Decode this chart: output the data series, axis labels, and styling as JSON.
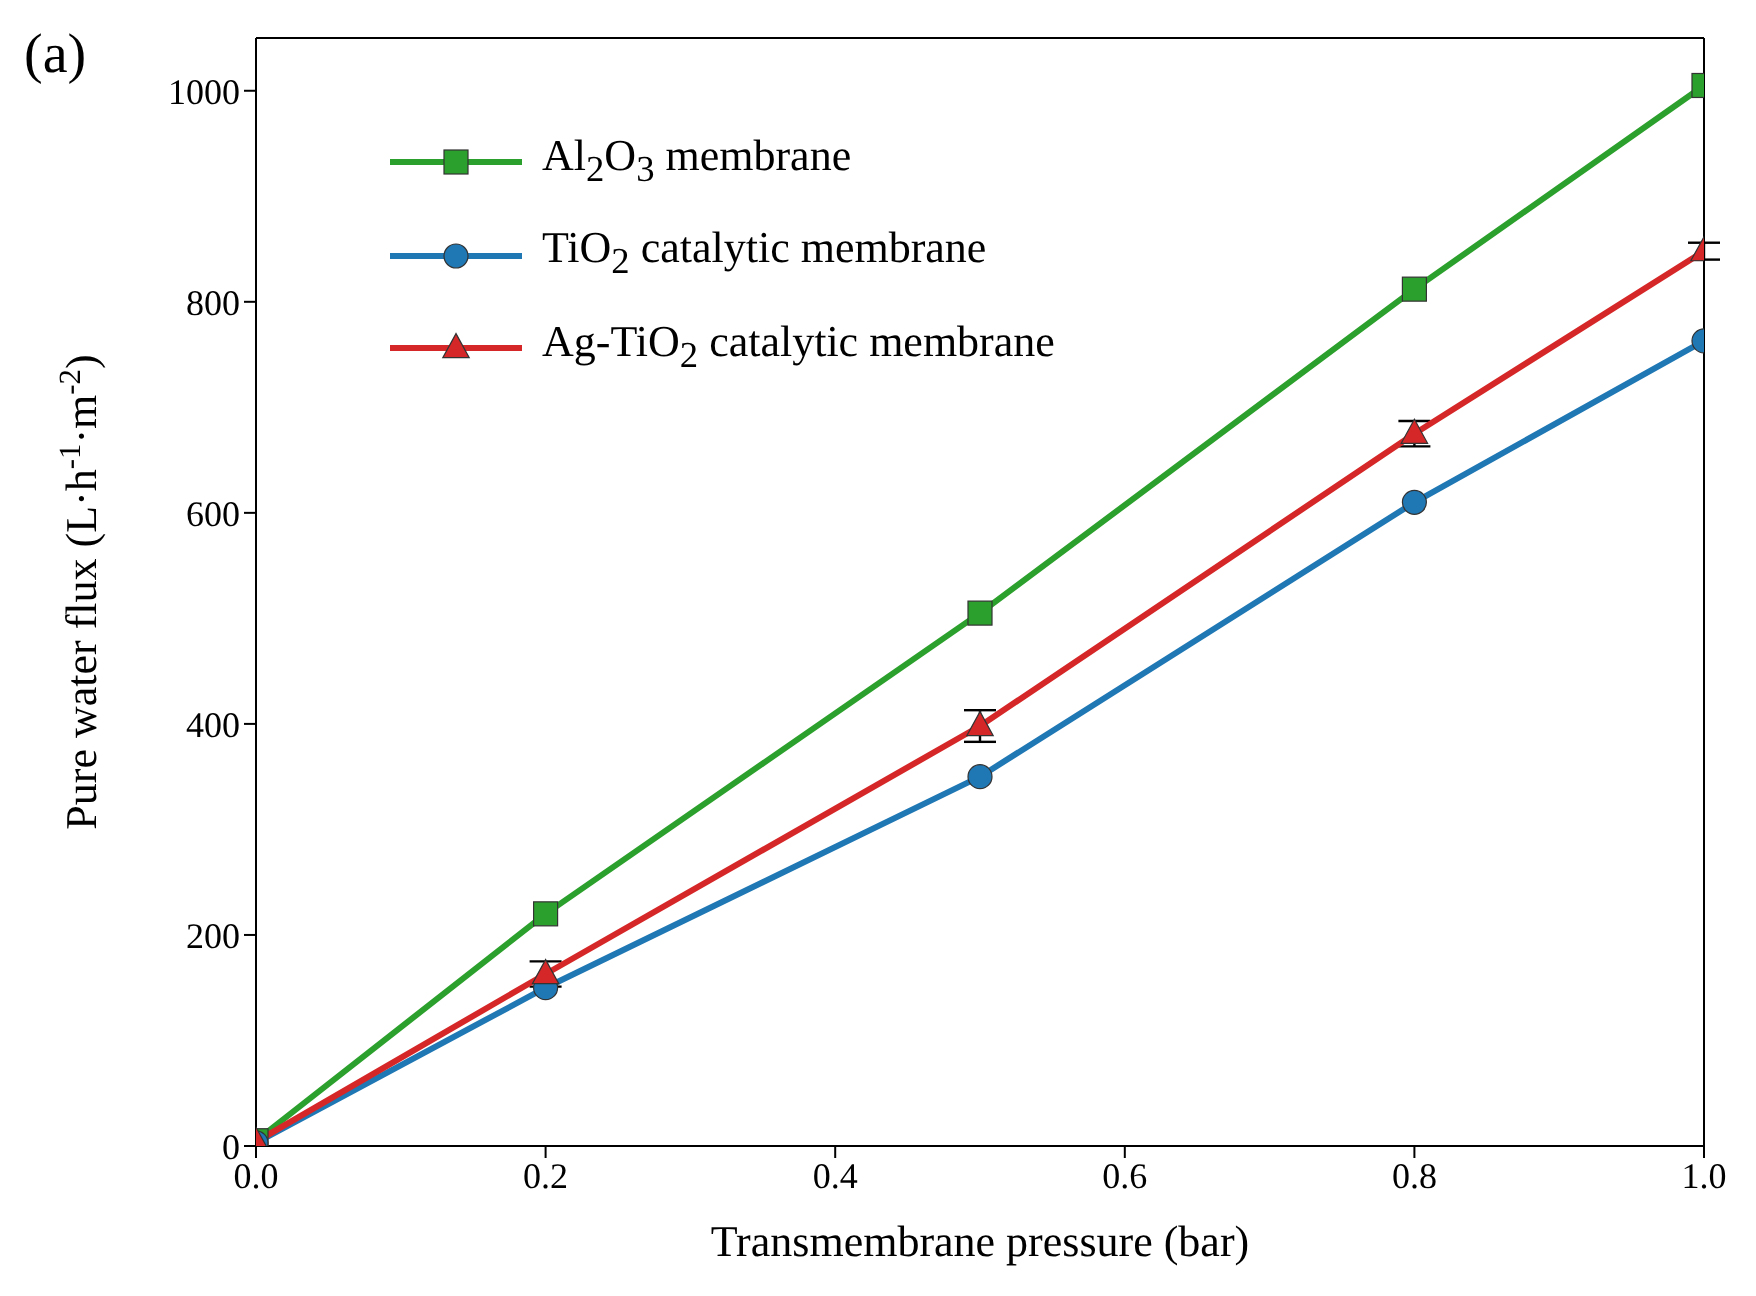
{
  "chart_data": {
    "type": "line",
    "annotations": [
      "(a)"
    ],
    "xlabel": "Transmembrane pressure (bar)",
    "ylabel": "Pure water flux (L·h$^{-1}$·m$^{-2}$)",
    "x": [
      0,
      0.2,
      0.5,
      0.8,
      1.0
    ],
    "series": [
      {
        "name": "Al$_{2}$O$_{3}$ membrane",
        "color": "#2ca02c",
        "marker": "square",
        "values": [
          5,
          220,
          505,
          812,
          1005
        ]
      },
      {
        "name": "TiO$_{2}$ catalytic membrane",
        "color": "#1f77b4",
        "marker": "circle",
        "values": [
          3,
          150,
          350,
          610,
          763
        ]
      },
      {
        "name": "Ag-TiO$_{2}$ catalytic membrane",
        "color": "#d62728",
        "marker": "triangle",
        "values": [
          4,
          163,
          398,
          675,
          848
        ],
        "errors": [
          null,
          12,
          15,
          12,
          8
        ]
      }
    ],
    "xlim": [
      0,
      1
    ],
    "xticks": [
      {
        "value": 0,
        "label": "0.0"
      },
      0.2,
      0.4,
      0.6,
      0.8,
      {
        "value": 1,
        "label": "1.0"
      }
    ],
    "ylim": [
      0,
      1050
    ],
    "yticks": [
      0,
      200,
      400,
      600,
      800,
      1000
    ],
    "grid": false,
    "legend": "top left",
    "line_style": "solid"
  }
}
